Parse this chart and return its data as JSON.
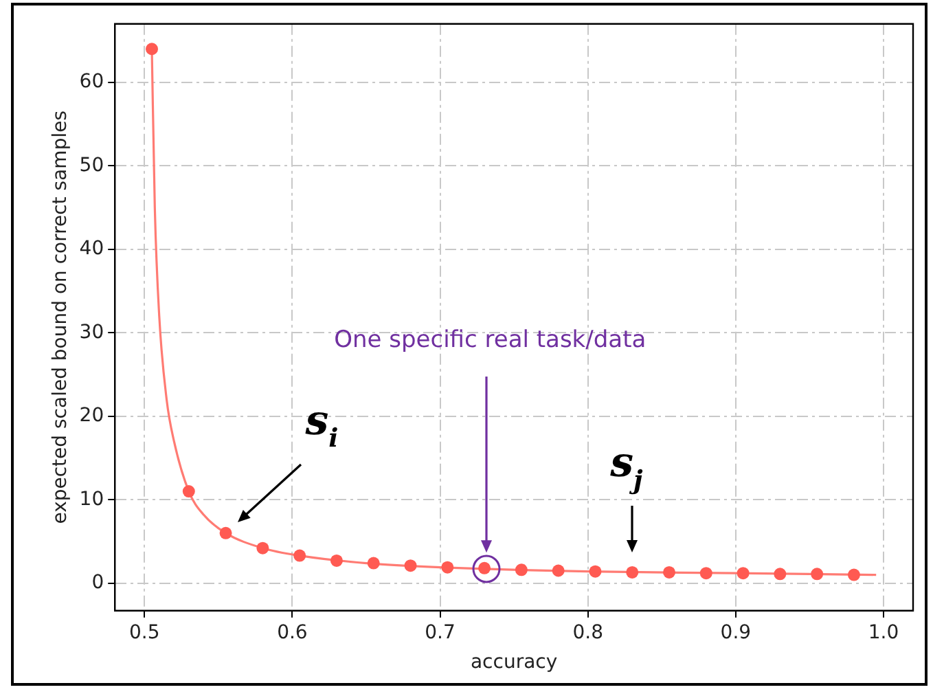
{
  "chart_data": {
    "type": "line",
    "xlabel": "accuracy",
    "ylabel": "expected scaled bound on correct samples",
    "xlim": [
      0.48,
      1.02
    ],
    "xticks": [
      {
        "value": 0.5,
        "label": "0.5"
      },
      {
        "value": 0.6,
        "label": "0.6"
      },
      {
        "value": 0.7,
        "label": "0.7"
      },
      {
        "value": 0.8,
        "label": "0.8"
      },
      {
        "value": 0.9,
        "label": "0.9"
      },
      {
        "value": 1.0,
        "label": "1.0"
      }
    ],
    "ylim": [
      -3.3,
      67
    ],
    "yticks": [
      0,
      10,
      20,
      30,
      40,
      50,
      60
    ],
    "grid": true,
    "line_style": "solid",
    "series": [
      {
        "color": "#ff7b73",
        "marker": "none",
        "x": [
          0.505,
          0.507,
          0.51,
          0.515,
          0.52,
          0.53,
          0.54,
          0.555,
          0.58,
          0.605,
          0.65,
          0.7,
          0.8,
          0.9,
          0.995
        ],
        "values": [
          64,
          45,
          32,
          22,
          17,
          11,
          8.2,
          6,
          4.2,
          3.3,
          2.4,
          1.9,
          1.4,
          1.2,
          1.0
        ]
      },
      {
        "type": "scatter",
        "color": "#ff5a52",
        "marker": "circle",
        "x": [
          0.505,
          0.53,
          0.555,
          0.58,
          0.605,
          0.63,
          0.655,
          0.68,
          0.705,
          0.73,
          0.755,
          0.78,
          0.805,
          0.83,
          0.855,
          0.88,
          0.905,
          0.93,
          0.955,
          0.98
        ],
        "values": [
          64,
          11,
          6,
          4.2,
          3.3,
          2.7,
          2.4,
          2.1,
          1.9,
          1.8,
          1.6,
          1.5,
          1.4,
          1.3,
          1.3,
          1.2,
          1.2,
          1.1,
          1.1,
          1.0
        ]
      }
    ],
    "annotations": [
      "One specific real task/data",
      {
        "text": "s$_{i}$",
        "x": 0.555,
        "y": 6
      },
      {
        "text": "s$_{j}$",
        "x": 0.83,
        "y": 1.3
      }
    ]
  }
}
